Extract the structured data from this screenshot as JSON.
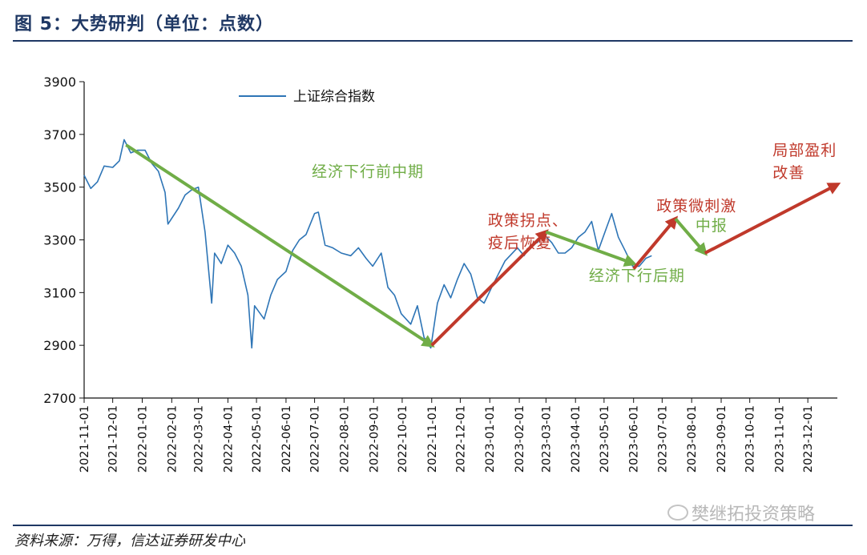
{
  "figure": {
    "title": "图 5：大势研判（单位：点数）",
    "source": "资料来源：万得，信达证券研发中心",
    "watermark": "樊继拓投资策略"
  },
  "chart_data": {
    "type": "line",
    "ylim": [
      2700,
      3900
    ],
    "yticks": [
      2700,
      2900,
      3100,
      3300,
      3500,
      3700,
      3900
    ],
    "xlim": [
      "2021-11-01",
      "2024-01-01"
    ],
    "xticks": [
      "2021-11-01",
      "2021-12-01",
      "2022-01-01",
      "2022-02-01",
      "2022-03-01",
      "2022-04-01",
      "2022-05-01",
      "2022-06-01",
      "2022-07-01",
      "2022-08-01",
      "2022-09-01",
      "2022-10-01",
      "2022-11-01",
      "2022-12-01",
      "2023-01-01",
      "2023-02-01",
      "2023-03-01",
      "2023-04-01",
      "2023-05-01",
      "2023-06-01",
      "2023-07-01",
      "2023-08-01",
      "2023-09-01",
      "2023-10-01",
      "2023-11-01",
      "2023-12-01"
    ],
    "legend": {
      "position": "top-left",
      "entries": [
        "上证综合指数"
      ]
    },
    "series": [
      {
        "name": "上证综合指数",
        "color": "#2e75b6",
        "points": [
          [
            "2021-11-01",
            3545
          ],
          [
            "2021-11-08",
            3495
          ],
          [
            "2021-11-15",
            3520
          ],
          [
            "2021-11-22",
            3580
          ],
          [
            "2021-12-01",
            3575
          ],
          [
            "2021-12-08",
            3600
          ],
          [
            "2021-12-13",
            3680
          ],
          [
            "2021-12-20",
            3630
          ],
          [
            "2021-12-27",
            3640
          ],
          [
            "2022-01-04",
            3640
          ],
          [
            "2022-01-11",
            3590
          ],
          [
            "2022-01-18",
            3560
          ],
          [
            "2022-01-25",
            3480
          ],
          [
            "2022-01-28",
            3360
          ],
          [
            "2022-02-08",
            3420
          ],
          [
            "2022-02-15",
            3470
          ],
          [
            "2022-02-22",
            3490
          ],
          [
            "2022-03-01",
            3500
          ],
          [
            "2022-03-08",
            3330
          ],
          [
            "2022-03-15",
            3060
          ],
          [
            "2022-03-18",
            3250
          ],
          [
            "2022-03-25",
            3210
          ],
          [
            "2022-04-01",
            3280
          ],
          [
            "2022-04-08",
            3250
          ],
          [
            "2022-04-15",
            3200
          ],
          [
            "2022-04-22",
            3090
          ],
          [
            "2022-04-26",
            2890
          ],
          [
            "2022-04-29",
            3050
          ],
          [
            "2022-05-09",
            3000
          ],
          [
            "2022-05-16",
            3090
          ],
          [
            "2022-05-23",
            3150
          ],
          [
            "2022-06-01",
            3180
          ],
          [
            "2022-06-08",
            3260
          ],
          [
            "2022-06-15",
            3300
          ],
          [
            "2022-06-22",
            3320
          ],
          [
            "2022-07-01",
            3400
          ],
          [
            "2022-07-05",
            3405
          ],
          [
            "2022-07-12",
            3280
          ],
          [
            "2022-07-20",
            3270
          ],
          [
            "2022-07-29",
            3250
          ],
          [
            "2022-08-08",
            3240
          ],
          [
            "2022-08-16",
            3270
          ],
          [
            "2022-08-24",
            3230
          ],
          [
            "2022-08-31",
            3200
          ],
          [
            "2022-09-09",
            3250
          ],
          [
            "2022-09-16",
            3120
          ],
          [
            "2022-09-23",
            3090
          ],
          [
            "2022-09-30",
            3020
          ],
          [
            "2022-10-10",
            2980
          ],
          [
            "2022-10-17",
            3050
          ],
          [
            "2022-10-24",
            2930
          ],
          [
            "2022-10-31",
            2890
          ],
          [
            "2022-11-07",
            3060
          ],
          [
            "2022-11-14",
            3130
          ],
          [
            "2022-11-21",
            3080
          ],
          [
            "2022-11-28",
            3150
          ],
          [
            "2022-12-05",
            3210
          ],
          [
            "2022-12-12",
            3170
          ],
          [
            "2022-12-19",
            3080
          ],
          [
            "2022-12-26",
            3060
          ],
          [
            "2023-01-03",
            3120
          ],
          [
            "2023-01-10",
            3170
          ],
          [
            "2023-01-17",
            3220
          ],
          [
            "2023-01-30",
            3270
          ],
          [
            "2023-02-06",
            3240
          ],
          [
            "2023-02-13",
            3280
          ],
          [
            "2023-02-20",
            3290
          ],
          [
            "2023-02-27",
            3320
          ],
          [
            "2023-03-07",
            3290
          ],
          [
            "2023-03-14",
            3250
          ],
          [
            "2023-03-21",
            3250
          ],
          [
            "2023-03-28",
            3270
          ],
          [
            "2023-04-04",
            3310
          ],
          [
            "2023-04-11",
            3330
          ],
          [
            "2023-04-18",
            3370
          ],
          [
            "2023-04-25",
            3260
          ],
          [
            "2023-05-04",
            3350
          ],
          [
            "2023-05-09",
            3400
          ],
          [
            "2023-05-16",
            3310
          ],
          [
            "2023-05-23",
            3260
          ],
          [
            "2023-05-31",
            3200
          ],
          [
            "2023-06-07",
            3200
          ],
          [
            "2023-06-14",
            3230
          ],
          [
            "2023-06-20",
            3240
          ]
        ]
      }
    ],
    "arrows": [
      {
        "from": [
          "2021-12-15",
          3660
        ],
        "to": [
          "2022-11-01",
          2900
        ],
        "color": "#70ad47",
        "label": "经济下行前中期"
      },
      {
        "from": [
          "2022-11-01",
          2900
        ],
        "to": [
          "2023-03-01",
          3330
        ],
        "color": "#c0392b",
        "label": "政策拐点、疫后恢复"
      },
      {
        "from": [
          "2023-03-01",
          3330
        ],
        "to": [
          "2023-06-01",
          3210
        ],
        "color": "#70ad47",
        "label": "经济下行后期"
      },
      {
        "from": [
          "2023-06-01",
          3190
        ],
        "to": [
          "2023-07-15",
          3380
        ],
        "color": "#c0392b",
        "label": "政策微刺激"
      },
      {
        "from": [
          "2023-07-15",
          3380
        ],
        "to": [
          "2023-08-15",
          3250
        ],
        "color": "#70ad47",
        "label": "中报"
      },
      {
        "from": [
          "2023-08-15",
          3250
        ],
        "to": [
          "2024-01-01",
          3510
        ],
        "color": "#c0392b",
        "label": "局部盈利改善"
      }
    ],
    "annotations": [
      {
        "text": "经济下行前中期",
        "color": "#70ad47",
        "at": [
          "2022-06-28",
          3540
        ]
      },
      {
        "lines": [
          "政策拐点、",
          "疫后恢复"
        ],
        "color": "#c0392b",
        "at": [
          "2022-12-30",
          3355
        ]
      },
      {
        "text": "经济下行后期",
        "color": "#70ad47",
        "at": [
          "2023-04-15",
          3145
        ]
      },
      {
        "text": "政策微刺激",
        "color": "#c0392b",
        "at": [
          "2023-06-25",
          3410
        ]
      },
      {
        "text": "中报",
        "color": "#70ad47",
        "at": [
          "2023-08-05",
          3335
        ]
      },
      {
        "lines": [
          "局部盈利",
          "改善"
        ],
        "color": "#c0392b",
        "at": [
          "2023-10-25",
          3620
        ]
      }
    ]
  }
}
